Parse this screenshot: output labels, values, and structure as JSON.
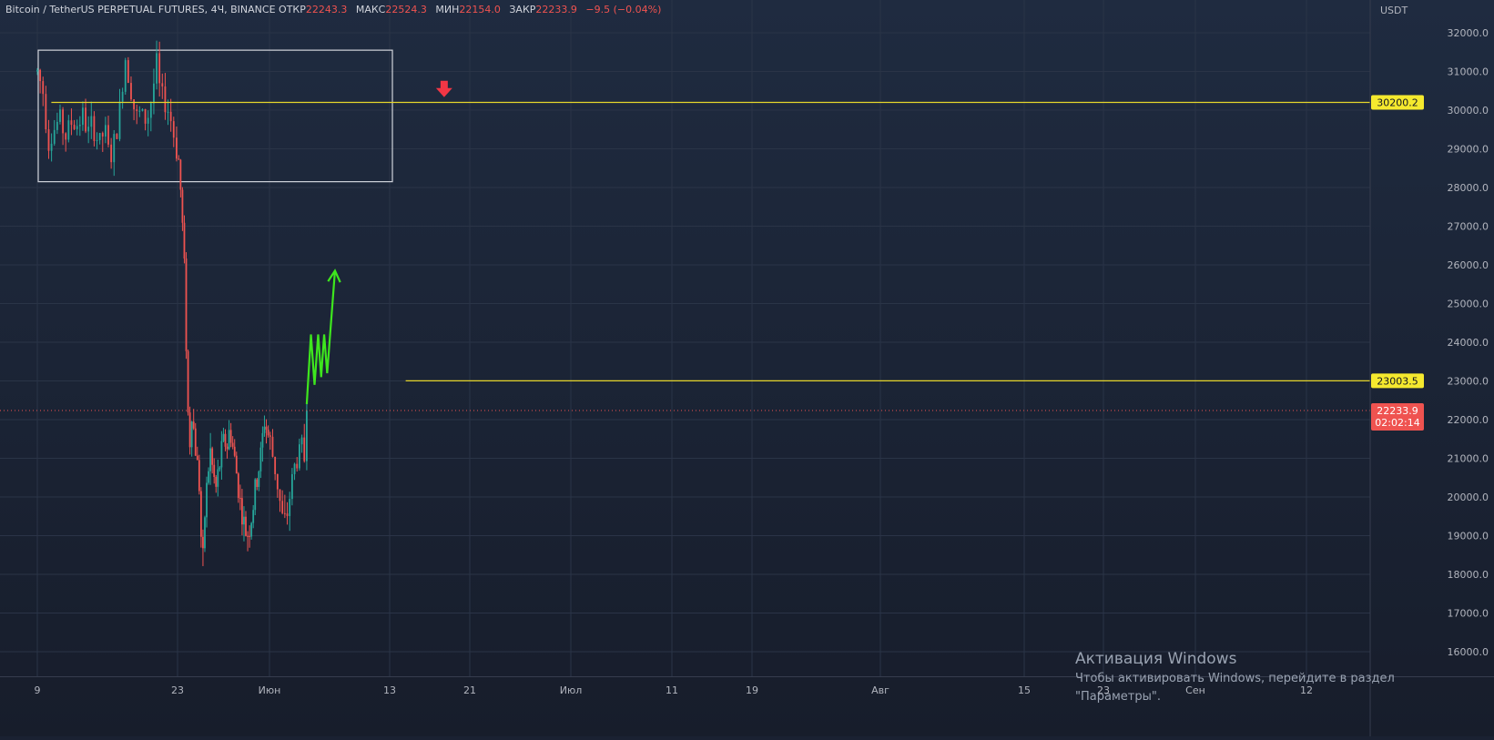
{
  "header": {
    "symbol": "Bitcoin / TetherUS PERPETUAL FUTURES, 4Ч, BINANCE",
    "open_label": "ОТКР",
    "open": "22243.3",
    "high_label": "МАКС",
    "high": "22524.3",
    "low_label": "МИН",
    "low": "22154.0",
    "close_label": "ЗАКР",
    "close": "22233.9",
    "change": "−9.5 (−0.04%)"
  },
  "chart_data": {
    "type": "candlestick",
    "currency": "USDT",
    "ylim": [
      15500,
      32800
    ],
    "y_ticks": [
      "32000.0",
      "31000.0",
      "30000.0",
      "29000.0",
      "28000.0",
      "27000.0",
      "26000.0",
      "25000.0",
      "24000.0",
      "23000.0",
      "22000.0",
      "21000.0",
      "20000.0",
      "19000.0",
      "18000.0",
      "17000.0",
      "16000.0"
    ],
    "x_ticks": [
      "9",
      "23",
      "Июн",
      "13",
      "21",
      "Июл",
      "11",
      "19",
      "Авг",
      "15",
      "23",
      "Сен",
      "12"
    ],
    "levels": [
      {
        "value": 30200.2,
        "label": "30200.2"
      },
      {
        "value": 23003.5,
        "label": "23003.5"
      }
    ],
    "last_price": {
      "value": 22233.9,
      "label": "22233.9",
      "countdown": "02:02:14"
    },
    "range_box": {
      "from": "9",
      "to": "13",
      "high": 31550,
      "low": 28150
    },
    "price_path": [
      [
        0,
        31000
      ],
      [
        0.04,
        30500
      ],
      [
        0.08,
        29200
      ],
      [
        0.12,
        29500
      ],
      [
        0.16,
        29800
      ],
      [
        0.2,
        29300
      ],
      [
        0.24,
        29700
      ],
      [
        0.28,
        29600
      ],
      [
        0.32,
        29900
      ],
      [
        0.36,
        29400
      ],
      [
        0.4,
        29600
      ],
      [
        0.44,
        29100
      ],
      [
        0.48,
        29500
      ],
      [
        0.52,
        28700
      ],
      [
        0.56,
        29300
      ],
      [
        0.6,
        30300
      ],
      [
        0.62,
        31500
      ],
      [
        0.66,
        30800
      ],
      [
        0.7,
        29800
      ],
      [
        0.74,
        29900
      ],
      [
        0.78,
        29700
      ],
      [
        0.82,
        30400
      ],
      [
        0.85,
        31200
      ],
      [
        0.88,
        30300
      ],
      [
        0.92,
        30200
      ],
      [
        0.95,
        29800
      ],
      [
        0.98,
        29200
      ],
      [
        1.02,
        28600
      ],
      [
        1.04,
        27600
      ],
      [
        1.07,
        26300
      ],
      [
        1.1,
        23500
      ],
      [
        1.12,
        21600
      ],
      [
        1.14,
        21400
      ],
      [
        1.16,
        22500
      ],
      [
        1.18,
        21500
      ],
      [
        1.21,
        21000
      ],
      [
        1.24,
        20200
      ],
      [
        1.26,
        18700
      ],
      [
        1.28,
        18200
      ],
      [
        1.3,
        19800
      ],
      [
        1.33,
        20600
      ],
      [
        1.36,
        21200
      ],
      [
        1.39,
        20500
      ],
      [
        1.42,
        20200
      ],
      [
        1.45,
        20700
      ],
      [
        1.48,
        21200
      ],
      [
        1.51,
        21500
      ],
      [
        1.54,
        21300
      ],
      [
        1.57,
        21800
      ],
      [
        1.6,
        21300
      ],
      [
        1.63,
        20800
      ],
      [
        1.66,
        20300
      ],
      [
        1.69,
        19700
      ],
      [
        1.72,
        19300
      ],
      [
        1.75,
        19000
      ],
      [
        1.78,
        19200
      ],
      [
        1.81,
        19500
      ],
      [
        1.84,
        20100
      ],
      [
        1.87,
        20500
      ],
      [
        1.9,
        21000
      ],
      [
        1.93,
        21600
      ],
      [
        1.95,
        22100
      ],
      [
        1.97,
        21700
      ],
      [
        2.0,
        21500
      ],
      [
        2.03,
        21000
      ],
      [
        2.06,
        20500
      ],
      [
        2.09,
        19800
      ],
      [
        2.12,
        19200
      ],
      [
        2.15,
        19600
      ],
      [
        2.18,
        20300
      ],
      [
        2.21,
        20800
      ],
      [
        2.24,
        21100
      ],
      [
        2.27,
        21300
      ],
      [
        2.29,
        21000
      ],
      [
        2.31,
        22230
      ]
    ],
    "projection_path": [
      [
        2.31,
        22400
      ],
      [
        2.345,
        24200
      ],
      [
        2.375,
        22900
      ],
      [
        2.405,
        24200
      ],
      [
        2.43,
        23100
      ],
      [
        2.455,
        24200
      ],
      [
        2.48,
        23200
      ],
      [
        2.545,
        25850
      ]
    ]
  },
  "watermark": {
    "title": "Активация Windows",
    "line1": "Чтобы активировать Windows, перейдите в раздел",
    "line2": "\"Параметры\"."
  }
}
